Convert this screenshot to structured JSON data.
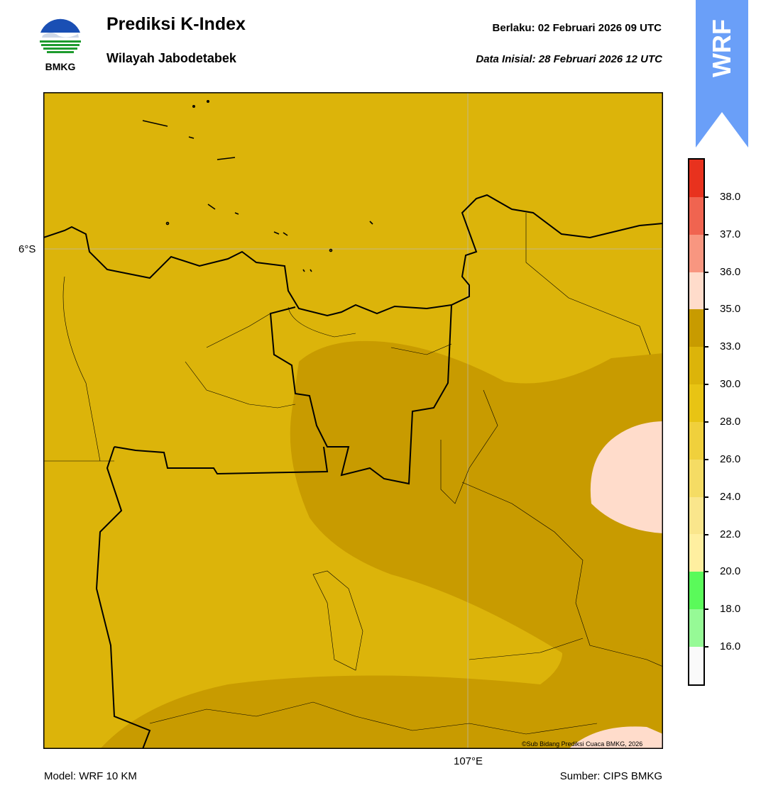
{
  "header": {
    "logo_text": "BMKG",
    "title": "Prediksi K-Index",
    "subtitle": "Wilayah Jabodetabek",
    "valid_label": "Berlaku:  02 Februari 2026 09 UTC",
    "init_label": "Data Inisial:  28 Februari 2026 12 UTC",
    "model_badge": "WRF"
  },
  "map": {
    "lat_label": "6°S",
    "lon_label": "107°E",
    "credit": "©Sub Bidang Prediksi Cuaca BMKG, 2026",
    "field_colors": {
      "base": "#dcb40a",
      "higher": "#c89b00",
      "highest": "#ffdccb"
    }
  },
  "colorbar": {
    "colors": [
      "#e8321e",
      "#f06450",
      "#f89680",
      "#ffdccb",
      "#c89b00",
      "#dcb40a",
      "#e8c414",
      "#f0d03c",
      "#f5dc64",
      "#fae68c",
      "#ffefa0",
      "#5afa5a",
      "#96fa96",
      "#fafafa"
    ],
    "ticks": [
      "38.0",
      "37.0",
      "36.0",
      "35.0",
      "33.0",
      "30.0",
      "28.0",
      "26.0",
      "24.0",
      "22.0",
      "20.0",
      "18.0",
      "16.0"
    ]
  },
  "footer": {
    "model": "Model: WRF 10 KM",
    "source": "Sumber: CIPS BMKG"
  }
}
